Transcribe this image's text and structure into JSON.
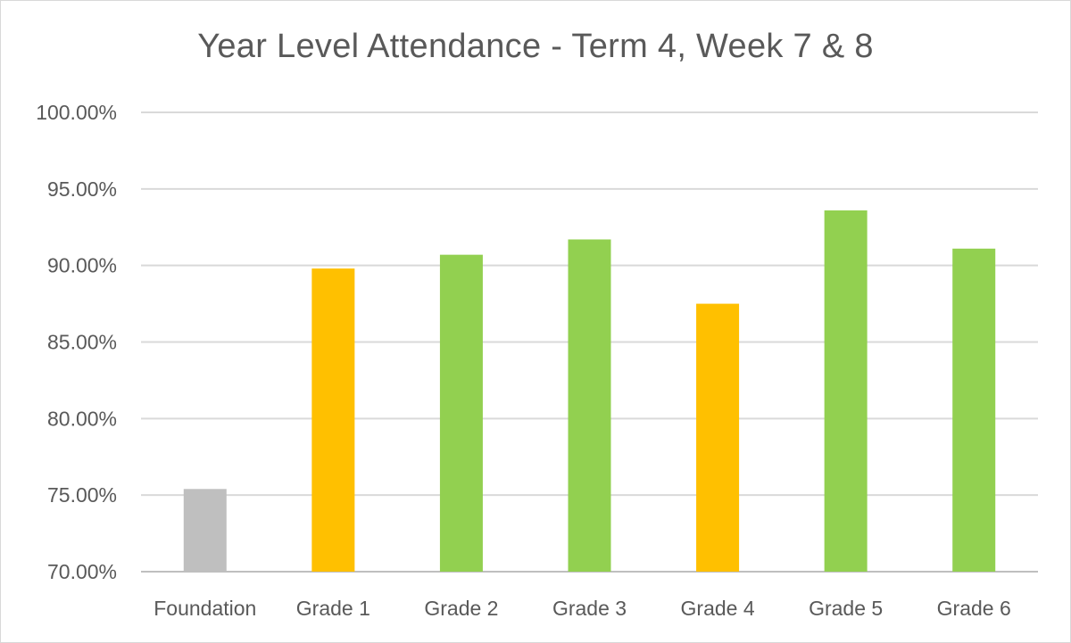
{
  "chart_data": {
    "type": "bar",
    "title": "Year Level Attendance - Term 4, Week 7 & 8",
    "xlabel": "",
    "ylabel": "",
    "categories": [
      "Foundation",
      "Grade 1",
      "Grade 2",
      "Grade 3",
      "Grade 4",
      "Grade 5",
      "Grade 6"
    ],
    "values": [
      75.4,
      89.8,
      90.7,
      91.7,
      87.5,
      93.6,
      91.1
    ],
    "bar_colors": [
      "#bfbfbf",
      "#ffc000",
      "#92d050",
      "#92d050",
      "#ffc000",
      "#92d050",
      "#92d050"
    ],
    "ylim": [
      70,
      100
    ],
    "yticks": [
      70,
      75,
      80,
      85,
      90,
      95,
      100
    ],
    "ytick_labels": [
      "70.00%",
      "75.00%",
      "80.00%",
      "85.00%",
      "90.00%",
      "95.00%",
      "100.00%"
    ],
    "grid": true,
    "legend": "none"
  }
}
